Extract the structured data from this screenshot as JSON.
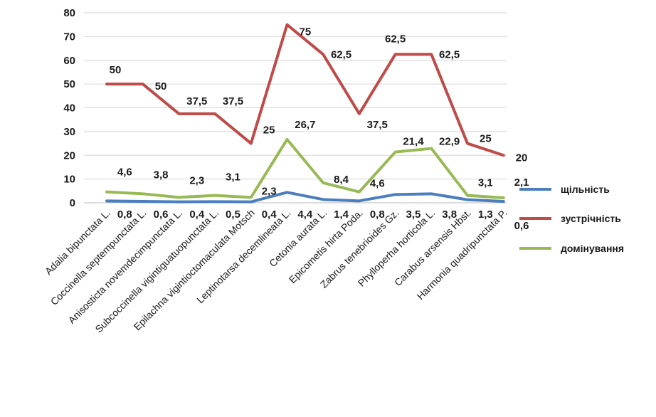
{
  "chart_data": {
    "type": "line",
    "title": "",
    "xlabel": "",
    "ylabel": "",
    "ylim": [
      0,
      80
    ],
    "yticks": [
      "0",
      "10",
      "20",
      "30",
      "40",
      "50",
      "60",
      "70",
      "80"
    ],
    "grid": true,
    "legend_position": "right",
    "categories": [
      "Adalia bipunctata L.",
      "Coccinella septempunctata L.",
      "Anisosticta novemdecimpunctata L.",
      "Subcoccinella vigintiguatuopunctata L.",
      "Epilachna vigintioctomaculata Motsch",
      "Leptinotarsa decemlineata L.",
      "Cetonia aurata L.",
      "Epicometis hirta Poda.",
      "Zabrus tenebrioides Gz.",
      "Phylloperha horticola L.",
      "Carabus arsensis Hbst.",
      "Harmonia quadripunctata P."
    ],
    "series": [
      {
        "name": "щільність",
        "color": "#4a7ebf",
        "values": [
          0.8,
          0.6,
          0.4,
          0.5,
          0.4,
          4.4,
          1.4,
          0.8,
          3.5,
          3.8,
          1.3,
          0.6
        ],
        "labels": [
          "0,8",
          "0,6",
          "0,4",
          "0,5",
          "0,4",
          "4,4",
          "1,4",
          "0,8",
          "3,5",
          "3,8",
          "1,3",
          "0,6"
        ]
      },
      {
        "name": "зустрічність",
        "color": "#be4b48",
        "values": [
          50,
          50,
          37.5,
          37.5,
          25,
          75,
          62.5,
          37.5,
          62.5,
          62.5,
          25,
          20
        ],
        "labels": [
          "50",
          "50",
          "37,5",
          "37,5",
          "25",
          "75",
          "62,5",
          "37,5",
          "62,5",
          "62,5",
          "25",
          "20"
        ]
      },
      {
        "name": "домінування",
        "color": "#98b954",
        "values": [
          4.6,
          3.8,
          2.3,
          3.1,
          2.3,
          26.7,
          8.4,
          4.6,
          21.4,
          22.9,
          3.1,
          2.1
        ],
        "labels": [
          "4,6",
          "3,8",
          "2,3",
          "3,1",
          "2,3",
          "26,7",
          "8,4",
          "4,6",
          "21,4",
          "22,9",
          "3,1",
          "2,1"
        ]
      }
    ]
  }
}
